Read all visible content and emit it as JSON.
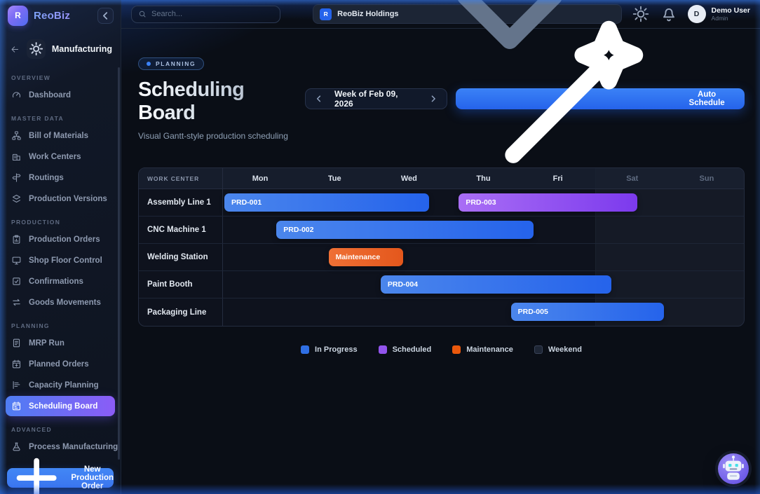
{
  "brand": {
    "name": "ReoBiz",
    "logo_letter": "R"
  },
  "topbar": {
    "search_placeholder": "Search...",
    "tenant": {
      "initial": "R",
      "name": "ReoBiz Holdings"
    },
    "user": {
      "initial": "D",
      "name": "Demo User",
      "role": "Admin"
    }
  },
  "sidebar": {
    "module": "Manufacturing",
    "sections": [
      {
        "label": "OVERVIEW",
        "items": [
          {
            "label": "Dashboard",
            "icon": "gauge",
            "active": false
          }
        ]
      },
      {
        "label": "MASTER DATA",
        "items": [
          {
            "label": "Bill of Materials",
            "icon": "sitemap",
            "active": false
          },
          {
            "label": "Work Centers",
            "icon": "building",
            "active": false
          },
          {
            "label": "Routings",
            "icon": "signpost",
            "active": false
          },
          {
            "label": "Production Versions",
            "icon": "layers",
            "active": false
          }
        ]
      },
      {
        "label": "PRODUCTION",
        "items": [
          {
            "label": "Production Orders",
            "icon": "clipboard",
            "active": false
          },
          {
            "label": "Shop Floor Control",
            "icon": "monitor",
            "active": false
          },
          {
            "label": "Confirmations",
            "icon": "check-square",
            "active": false
          },
          {
            "label": "Goods Movements",
            "icon": "swap-arrows",
            "active": false
          }
        ]
      },
      {
        "label": "PLANNING",
        "items": [
          {
            "label": "MRP Run",
            "icon": "file-lines",
            "active": false
          },
          {
            "label": "Planned Orders",
            "icon": "calendar-plus",
            "active": false
          },
          {
            "label": "Capacity Planning",
            "icon": "capacity-chart",
            "active": false
          },
          {
            "label": "Scheduling Board",
            "icon": "calendar-board",
            "active": true
          }
        ]
      },
      {
        "label": "ADVANCED",
        "items": [
          {
            "label": "Process Manufacturing",
            "icon": "flask",
            "active": false
          },
          {
            "label": "",
            "icon": "cycle",
            "active": false
          }
        ]
      }
    ],
    "new_order_button": "New Production Order"
  },
  "page": {
    "badge": "PLANNING",
    "title": "Scheduling Board",
    "subtitle": "Visual Gantt-style production scheduling",
    "week_label": "Week of Feb 09, 2026",
    "auto_schedule_label": "Auto Schedule"
  },
  "chart_data": {
    "type": "gantt",
    "columns": {
      "label": "WORK CENTER",
      "days": [
        "Mon",
        "Tue",
        "Wed",
        "Thu",
        "Fri",
        "Sat",
        "Sun"
      ],
      "weekend_days": [
        "Sat",
        "Sun"
      ]
    },
    "rows": [
      {
        "work_center": "Assembly Line 1",
        "bars": [
          {
            "label": "PRD-001",
            "status": "in_progress",
            "start_pct": 0,
            "width_pct": 40
          },
          {
            "label": "PRD-003",
            "status": "scheduled",
            "start_pct": 45,
            "width_pct": 35
          }
        ]
      },
      {
        "work_center": "CNC Machine 1",
        "bars": [
          {
            "label": "PRD-002",
            "status": "in_progress",
            "start_pct": 10,
            "width_pct": 50
          }
        ]
      },
      {
        "work_center": "Welding Station",
        "bars": [
          {
            "label": "Maintenance",
            "status": "maintenance",
            "start_pct": 20,
            "width_pct": 15
          }
        ]
      },
      {
        "work_center": "Paint Booth",
        "bars": [
          {
            "label": "PRD-004",
            "status": "in_progress",
            "start_pct": 30,
            "width_pct": 45
          }
        ]
      },
      {
        "work_center": "Packaging Line",
        "bars": [
          {
            "label": "PRD-005",
            "status": "in_progress",
            "start_pct": 55,
            "width_pct": 30
          }
        ]
      }
    ],
    "status_styles": {
      "in_progress": {
        "from": "#4b86ec",
        "to": "#2563eb"
      },
      "scheduled": {
        "from": "#a96ef5",
        "to": "#7c3aed"
      },
      "maintenance": {
        "from": "#ef7035",
        "to": "#e4571c"
      },
      "weekend": {
        "from": "#1e2635",
        "to": "#1e2635"
      }
    },
    "legend": [
      {
        "label": "In Progress",
        "status": "in_progress",
        "color": "#2f6fe4"
      },
      {
        "label": "Scheduled",
        "status": "scheduled",
        "color": "#9254ec"
      },
      {
        "label": "Maintenance",
        "status": "maintenance",
        "color": "#ea580c"
      },
      {
        "label": "Weekend",
        "status": "weekend",
        "color": "#1e2635"
      }
    ]
  },
  "colors": {
    "accent_blue": "#3b82f6",
    "accent_purple": "#8b5cf6"
  }
}
